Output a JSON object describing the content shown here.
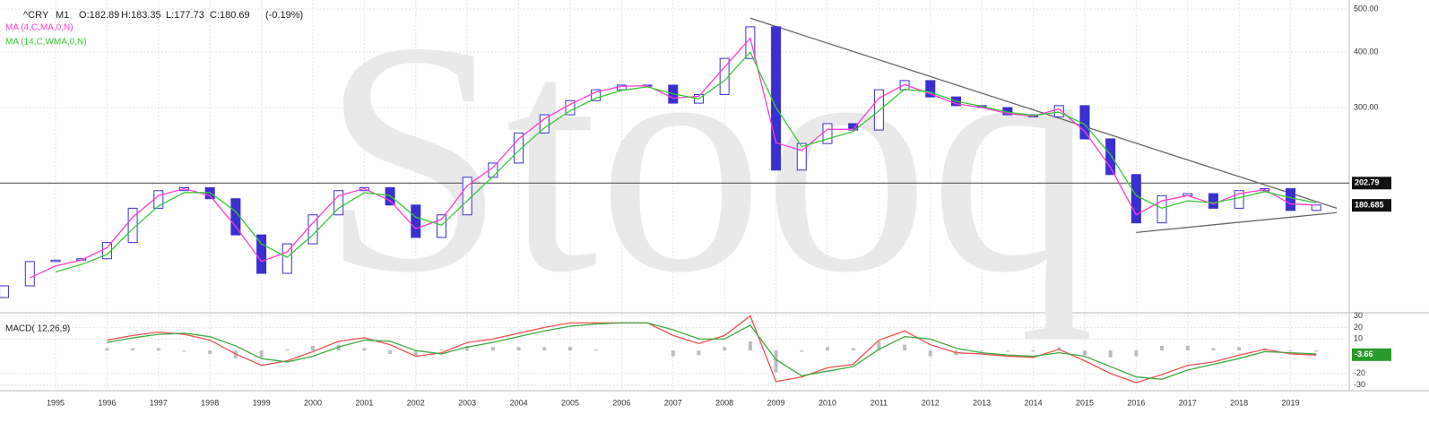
{
  "chart_data": {
    "type": "candlestick",
    "header": {
      "symbol": "^CRY",
      "interval": "M1",
      "open": "O:182.89",
      "high": "H:183.35",
      "low": "L:177.73",
      "close": "C:180.69",
      "change": "(-0.19%)"
    },
    "watermark": "Stooq",
    "x": [
      1994,
      1994.5,
      1995,
      1995.5,
      1996,
      1996.5,
      1997,
      1997.5,
      1998,
      1998.5,
      1999,
      1999.5,
      2000,
      2000.5,
      2001,
      2001.5,
      2002,
      2002.5,
      2003,
      2003.5,
      2004,
      2004.5,
      2005,
      2005.5,
      2006,
      2006.5,
      2007,
      2007.5,
      2008,
      2008.5,
      2009,
      2009.5,
      2010,
      2010.5,
      2011,
      2011.5,
      2012,
      2012.5,
      2013,
      2013.5,
      2014,
      2014.5,
      2015,
      2015.5,
      2016,
      2016.5,
      2017,
      2017.5,
      2018,
      2018.5,
      2019,
      2019.5
    ],
    "open": [
      112,
      119,
      135,
      136,
      137,
      149,
      178,
      195,
      198,
      187,
      155,
      127,
      148,
      172,
      195,
      198,
      181,
      153,
      172,
      209,
      225,
      263,
      289,
      311,
      329,
      337,
      337,
      307,
      321,
      387,
      456,
      217,
      249,
      276,
      267,
      329,
      345,
      317,
      303,
      300,
      289,
      286,
      303,
      255,
      212,
      165,
      190,
      192,
      178,
      195,
      197,
      176
    ],
    "close": [
      119,
      135,
      136,
      137,
      149,
      178,
      195,
      198,
      187,
      155,
      127,
      148,
      172,
      195,
      198,
      181,
      153,
      172,
      209,
      225,
      263,
      289,
      311,
      329,
      337,
      337,
      307,
      321,
      387,
      456,
      217,
      249,
      276,
      267,
      329,
      345,
      317,
      303,
      300,
      289,
      286,
      303,
      255,
      212,
      165,
      190,
      192,
      178,
      195,
      197,
      176,
      181
    ],
    "up_color": "#ffffff",
    "down_color": "#3a2fd0",
    "series": [
      {
        "name": "MA (4,C,MA,0,N)",
        "color": "#ff3ccf",
        "values": [
          null,
          124,
          132,
          136,
          145,
          170,
          190,
          197,
          190,
          162,
          135,
          142,
          165,
          190,
          197,
          185,
          160,
          168,
          200,
          220,
          255,
          283,
          305,
          325,
          335,
          336,
          315,
          318,
          370,
          430,
          250,
          240,
          268,
          268,
          315,
          338,
          322,
          306,
          300,
          291,
          287,
          298,
          265,
          220,
          172,
          185,
          190,
          182,
          192,
          196,
          182,
          181
        ]
      },
      {
        "name": "MA (14,C,WMA,0,N)",
        "color": "#36c936",
        "values": [
          null,
          null,
          128,
          133,
          140,
          160,
          180,
          193,
          193,
          175,
          148,
          138,
          155,
          178,
          193,
          190,
          170,
          163,
          185,
          210,
          240,
          270,
          295,
          315,
          328,
          334,
          322,
          314,
          345,
          400,
          300,
          245,
          255,
          265,
          295,
          330,
          325,
          310,
          302,
          293,
          288,
          293,
          275,
          235,
          190,
          178,
          185,
          183,
          188,
          194,
          188,
          183
        ]
      }
    ],
    "xlim": [
      1993.92,
      2020.14
    ],
    "xticks": [
      1995,
      1996,
      1997,
      1998,
      1999,
      2000,
      2001,
      2002,
      2003,
      2004,
      2005,
      2006,
      2007,
      2008,
      2009,
      2010,
      2011,
      2012,
      2013,
      2014,
      2015,
      2016,
      2017,
      2018,
      2019
    ],
    "ylim": [
      104,
      524
    ],
    "log_scale": true,
    "grid": true,
    "yticks": [
      {
        "value": 500,
        "label": "500.00"
      },
      {
        "value": 400,
        "label": "400.00"
      },
      {
        "value": 300,
        "label": "300.00"
      }
    ],
    "hline": 202.79,
    "last_price": 180.685,
    "trendlines": [
      {
        "x": [
          2008.5,
          2019.9
        ],
        "y": [
          477,
          178
        ]
      },
      {
        "x": [
          2016,
          2019.9
        ],
        "y": [
          157,
          174
        ]
      }
    ],
    "macd": {
      "title": "MACD( 12,26,9)",
      "ylim": [
        -35,
        32
      ],
      "yticks": [
        30,
        20,
        10,
        -20,
        -30
      ],
      "last_value": -3.66,
      "series": [
        {
          "color": "#f05050",
          "values": [
            null,
            null,
            null,
            null,
            9,
            13,
            16,
            14,
            9,
            -3,
            -13,
            -9,
            -1,
            8,
            11,
            5,
            -5,
            -2,
            7,
            10,
            15,
            20,
            24,
            24,
            24,
            24,
            13,
            6,
            13,
            30,
            -27,
            -23,
            -15,
            -12,
            9,
            17,
            5,
            -2,
            -3,
            -5,
            -6,
            1,
            -9,
            -20,
            -28,
            -21,
            -13,
            -10,
            -4,
            1,
            -3,
            -4
          ]
        },
        {
          "color": "#3fa93f",
          "values": [
            null,
            null,
            null,
            null,
            7,
            11,
            14,
            15,
            12,
            4,
            -7,
            -10,
            -5,
            3,
            9,
            8,
            0,
            -3,
            3,
            7,
            12,
            17,
            21,
            23,
            24,
            24,
            18,
            10,
            10,
            22,
            -8,
            -22,
            -18,
            -14,
            1,
            12,
            10,
            2,
            -2,
            -4,
            -5,
            -2,
            -5,
            -14,
            -23,
            -25,
            -17,
            -12,
            -7,
            -1,
            -2,
            -3
          ]
        }
      ],
      "histogram": {
        "color": "#bdbdbd",
        "values": [
          null,
          null,
          null,
          null,
          2,
          2,
          2,
          -1,
          -3,
          -7,
          -6,
          1,
          4,
          5,
          2,
          -3,
          -5,
          1,
          4,
          3,
          3,
          3,
          3,
          1,
          0,
          0,
          -5,
          -4,
          3,
          8,
          -19,
          -1,
          3,
          2,
          8,
          5,
          -5,
          -4,
          -1,
          -1,
          -1,
          3,
          -4,
          -6,
          -5,
          4,
          4,
          2,
          3,
          2,
          -1,
          -1
        ]
      }
    }
  }
}
